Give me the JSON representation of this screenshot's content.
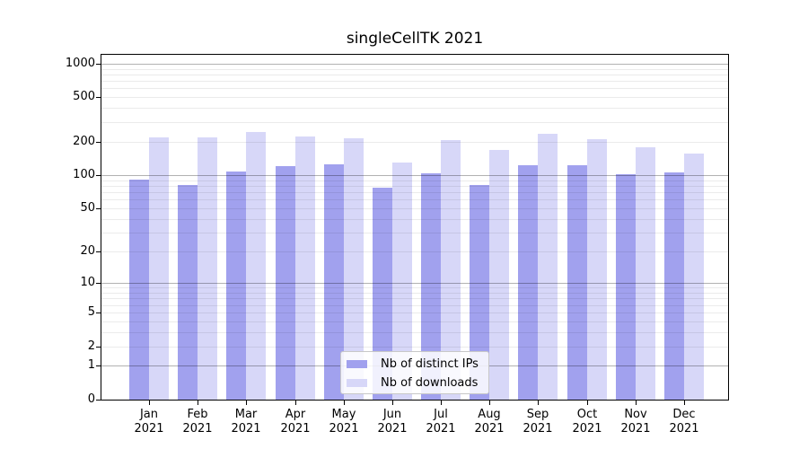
{
  "title": "singleCellTK 2021",
  "chart_data": {
    "type": "bar",
    "title": "singleCellTK 2021",
    "categories": [
      "Jan",
      "Feb",
      "Mar",
      "Apr",
      "May",
      "Jun",
      "Jul",
      "Aug",
      "Sep",
      "Oct",
      "Nov",
      "Dec"
    ],
    "category_year": "2021",
    "series": [
      {
        "name": "Nb of distinct IPs",
        "color": "#a1a1ee",
        "values": [
          91,
          81,
          108,
          121,
          125,
          77,
          104,
          82,
          123,
          123,
          102,
          106
        ]
      },
      {
        "name": "Nb of downloads",
        "color": "#d7d7f8",
        "values": [
          219,
          219,
          244,
          223,
          215,
          130,
          207,
          169,
          235,
          211,
          178,
          157
        ]
      }
    ],
    "yscale": "log1p",
    "ylim": [
      0,
      1200
    ],
    "yticks": [
      0,
      1,
      2,
      5,
      10,
      20,
      50,
      100,
      200,
      500,
      1000
    ],
    "grid_major": [
      1,
      10,
      100,
      1000
    ],
    "grid_minor": [
      2,
      3,
      4,
      5,
      6,
      7,
      8,
      9,
      20,
      30,
      40,
      50,
      60,
      70,
      80,
      90,
      200,
      300,
      400,
      500,
      600,
      700,
      800,
      900
    ],
    "grid": true,
    "legend_position": "lower center",
    "xlabel": "",
    "ylabel": ""
  }
}
